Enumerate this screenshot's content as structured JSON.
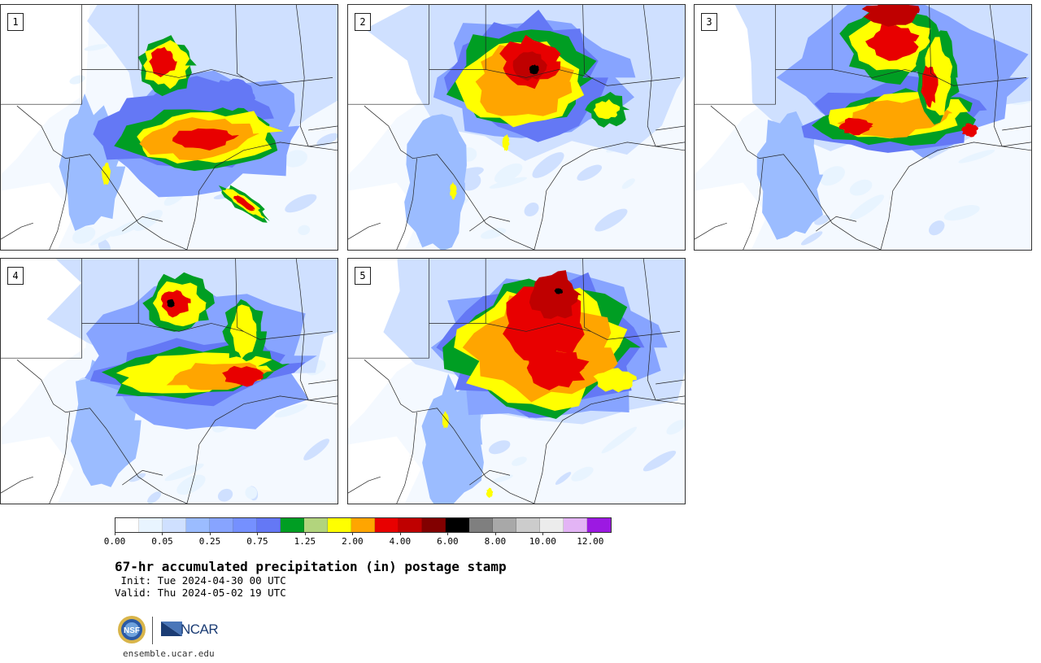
{
  "title": "67-hr accumulated precipitation (in) postage stamp",
  "init_line": " Init: Tue 2024-04-30 00 UTC",
  "valid_line": "Valid: Thu 2024-05-02 19 UTC",
  "site": "ensemble.ucar.edu",
  "logo_text": "NCAR",
  "logo_seal_text": "NSF",
  "panels": [
    {
      "label": "1"
    },
    {
      "label": "2"
    },
    {
      "label": "3"
    },
    {
      "label": "4"
    },
    {
      "label": "5"
    }
  ],
  "colorbar": {
    "colors": [
      "#ffffff",
      "#e8f4ff",
      "#cfe0ff",
      "#9bbcff",
      "#87a4ff",
      "#7590ff",
      "#6478f5",
      "#009e23",
      "#b2d47d",
      "#ffff00",
      "#ffa500",
      "#e80000",
      "#bf0000",
      "#820000",
      "#000000",
      "#7f7f7f",
      "#a8a8a8",
      "#cccccc",
      "#ececec",
      "#e3b4f5",
      "#9c19e2"
    ],
    "tick_labels": [
      "0.00",
      "0.05",
      "0.25",
      "0.75",
      "1.25",
      "2.00",
      "4.00",
      "6.00",
      "8.00",
      "10.00",
      "12.00"
    ]
  }
}
